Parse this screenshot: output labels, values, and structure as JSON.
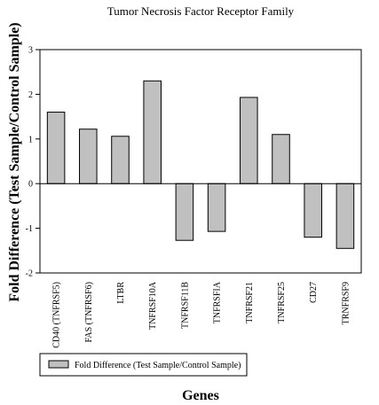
{
  "chart_data": {
    "type": "bar",
    "title": "Tumor Necrosis Factor Receptor Family",
    "xlabel": "Genes",
    "ylabel": "Fold Difference (Test Sample/Control Sample)",
    "ylim": [
      -2,
      3
    ],
    "yticks": [
      -2,
      -1,
      0,
      1,
      2,
      3
    ],
    "grid": false,
    "legend_position": "bottom-left",
    "bar_color": "#c0c0c0",
    "categories": [
      "CD40 (TNFRSF5)",
      "FAS (TNFRSF6)",
      "LTBR",
      "TNFRSF10A",
      "TNFRSF11B",
      "TNFRSFIA",
      "TNFRSF21",
      "TNFRSF25",
      "CD27",
      "TRNFRSF9"
    ],
    "series": [
      {
        "name": "Fold Difference (Test Sample/Control Sample)",
        "values": [
          1.6,
          1.22,
          1.06,
          2.3,
          -1.27,
          -1.07,
          1.93,
          1.1,
          -1.2,
          -1.45
        ]
      }
    ]
  }
}
